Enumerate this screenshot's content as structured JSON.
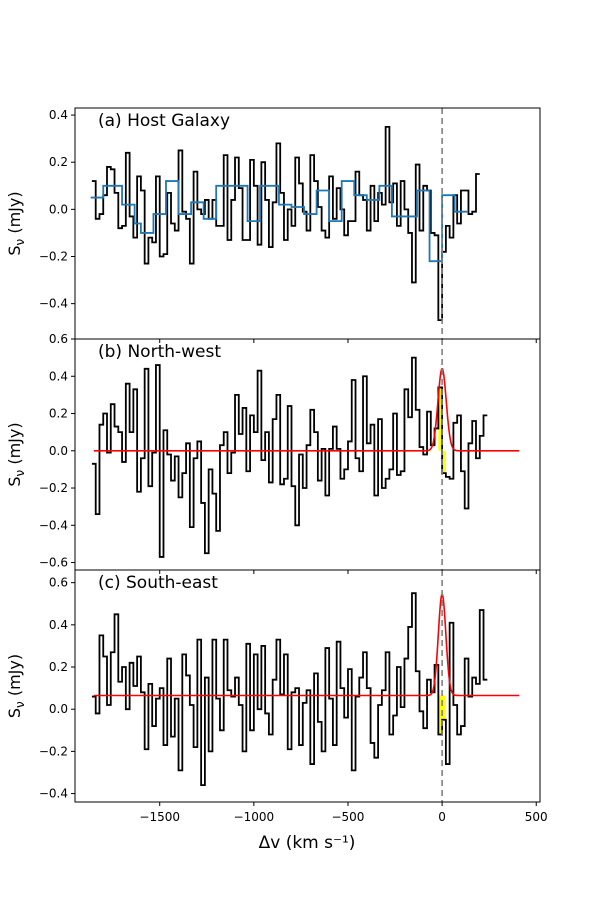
{
  "chart_data": [
    {
      "type": "line",
      "title": "(a) Host Galaxy",
      "ylabel": "Sν (mJy)",
      "ylabel_sub": "ν",
      "xlim": [
        -1950,
        520
      ],
      "ylim": [
        -0.55,
        0.43
      ],
      "yticks": [
        -0.4,
        -0.2,
        0.0,
        0.2,
        0.4
      ],
      "ytick_labels": [
        "−0.4",
        "−0.2",
        "0.0",
        "0.2",
        "0.4"
      ],
      "step_x0": -1850,
      "step_dx": 20,
      "series": [
        {
          "color": "#000000",
          "values": [
            0.12,
            -0.04,
            -0.02,
            0.06,
            0.18,
            0.17,
            0.07,
            -0.08,
            -0.07,
            0.24,
            -0.03,
            -0.12,
            0.14,
            0.08,
            -0.23,
            -0.12,
            -0.14,
            0.14,
            -0.2,
            -0.19,
            0.07,
            -0.06,
            -0.09,
            0.25,
            -0.01,
            -0.04,
            -0.23,
            0.16,
            0.0,
            -0.02,
            0.04,
            -0.04,
            0.04,
            -0.07,
            -0.07,
            0.23,
            -0.13,
            0.04,
            0.22,
            0.09,
            -0.13,
            -0.13,
            0.21,
            0.1,
            -0.15,
            0.2,
            0.04,
            -0.16,
            0.03,
            0.28,
            0.07,
            -0.13,
            0.0,
            -0.07,
            0.22,
            0.11,
            -0.01,
            -0.09,
            0.23,
            0.12,
            0.01,
            -0.09,
            -0.12,
            0.14,
            -0.04,
            0.09,
            0.0,
            -0.11,
            -0.05,
            -0.05,
            0.16,
            0.06,
            0.04,
            -0.09,
            0.1,
            -0.05,
            0.07,
            0.02,
            0.35,
            0.03,
            0.11,
            -0.07,
            0.12,
            0.0,
            -0.1,
            -0.31,
            0.19,
            -0.09,
            0.1,
            0.08,
            -0.1,
            -0.11,
            -0.47,
            -0.18,
            -0.07,
            -0.12,
            0.06,
            -0.06,
            0.08,
            0.08,
            -0.02,
            -0.01,
            0.15
          ]
        },
        {
          "color": "#1f77b4",
          "values": [
            0.05,
            0.05,
            0.1,
            0.1,
            0.1,
            0.02,
            0.02,
            -0.06,
            -0.1,
            -0.1,
            -0.02,
            -0.02,
            0.12,
            0.12,
            -0.02,
            -0.02,
            0.03,
            0.03,
            -0.04,
            -0.04,
            0.1,
            0.1,
            0.1,
            0.1,
            0.1,
            -0.05,
            -0.05,
            0.1,
            0.1,
            0.1,
            0.02,
            0.02,
            0.01,
            0.01,
            -0.02,
            -0.02,
            0.08,
            0.08,
            -0.05,
            -0.05,
            0.12,
            0.12,
            0.06,
            0.06,
            0.04,
            0.04,
            0.1,
            0.1,
            -0.03,
            -0.03,
            -0.03,
            -0.03,
            0.08,
            0.08,
            -0.22,
            -0.22,
            0.06,
            0.06,
            -0.01,
            -0.01
          ]
        }
      ]
    },
    {
      "type": "line",
      "title": "(b) North-west",
      "ylabel": "Sν (mJy)",
      "ylabel_sub": "ν",
      "xlim": [
        -1950,
        520
      ],
      "ylim": [
        -0.64,
        0.6
      ],
      "yticks": [
        -0.6,
        -0.4,
        -0.2,
        0.0,
        0.2,
        0.4,
        0.6
      ],
      "ytick_labels": [
        "−0.6",
        "−0.4",
        "−0.2",
        "0.0",
        "0.2",
        "0.4",
        "0.6"
      ],
      "step_x0": -1850,
      "step_dx": 20,
      "series": [
        {
          "color": "#000000",
          "values": [
            -0.07,
            -0.34,
            0.14,
            0.2,
            -0.01,
            0.25,
            0.13,
            0.1,
            -0.06,
            0.36,
            0.1,
            0.33,
            -0.22,
            -0.04,
            0.44,
            -0.19,
            -0.01,
            0.46,
            -0.57,
            0.11,
            -0.02,
            -0.16,
            -0.03,
            -0.25,
            -0.12,
            0.04,
            -0.41,
            -0.04,
            0.05,
            -0.28,
            -0.55,
            -0.1,
            -0.23,
            -0.43,
            0.03,
            0.1,
            -0.12,
            -0.01,
            0.3,
            0.09,
            0.23,
            -0.11,
            0.19,
            0.1,
            0.43,
            -0.05,
            0.1,
            -0.17,
            0.17,
            0.3,
            -0.18,
            -0.15,
            0.24,
            -0.19,
            -0.4,
            -0.02,
            -0.2,
            0.03,
            0.22,
            0.1,
            -0.16,
            0.01,
            -0.24,
            0.01,
            0.13,
            0.01,
            -0.15,
            -0.1,
            0.05,
            0.38,
            -0.04,
            -0.11,
            0.4,
            0.04,
            0.14,
            -0.24,
            0.17,
            -0.2,
            -0.15,
            -0.1,
            0.2,
            -0.13,
            -0.11,
            0.33,
            0.18,
            0.5,
            0.22,
            0.02,
            -0.02,
            0.21,
            0.03,
            0.12,
            0.34,
            -0.12,
            -0.14,
            -0.15,
            0.15,
            0.19,
            -0.11,
            -0.31,
            0.04,
            0.16,
            -0.04,
            0.08,
            0.19
          ]
        },
        {
          "color": "#ff0000",
          "values": []
        }
      ],
      "fit": {
        "baseline": 0.0,
        "amplitude": 0.44,
        "center": 0,
        "sigma": 22
      },
      "highlight": {
        "color": "#ffff00",
        "x_range": [
          -20,
          20
        ]
      }
    },
    {
      "type": "line",
      "title": "(c) South-east",
      "ylabel": "Sν (mJy)",
      "ylabel_sub": "ν",
      "xlim": [
        -1950,
        520
      ],
      "ylim": [
        -0.44,
        0.66
      ],
      "yticks": [
        -0.4,
        -0.2,
        0.0,
        0.2,
        0.4,
        0.6
      ],
      "ytick_labels": [
        "−0.4",
        "−0.2",
        "0.0",
        "0.2",
        "0.4",
        "0.6"
      ],
      "xticks": [
        -1500,
        -1000,
        -500,
        0,
        500
      ],
      "xtick_labels": [
        "−1500",
        "−1000",
        "−500",
        "0",
        "500"
      ],
      "xlabel": "Δv (km s⁻¹)",
      "step_x0": -1850,
      "step_dx": 20,
      "series": [
        {
          "color": "#000000",
          "values": [
            0.06,
            -0.02,
            0.35,
            0.25,
            0.02,
            0.27,
            0.45,
            0.13,
            0.2,
            0.0,
            0.22,
            0.11,
            0.25,
            0.08,
            -0.19,
            0.12,
            -0.08,
            0.05,
            0.1,
            -0.17,
            0.24,
            -0.13,
            0.05,
            -0.29,
            0.26,
            0.16,
            0.02,
            -0.18,
            0.33,
            -0.36,
            0.15,
            -0.2,
            0.33,
            0.05,
            -0.1,
            0.33,
            0.09,
            0.06,
            0.15,
            0.02,
            -0.2,
            0.31,
            -0.1,
            0.26,
            0.0,
            0.3,
            -0.02,
            -0.12,
            0.14,
            0.33,
            0.07,
            0.26,
            -0.19,
            0.08,
            0.1,
            -0.17,
            0.03,
            0.09,
            -0.26,
            0.17,
            -0.06,
            -0.2,
            0.29,
            0.05,
            -0.17,
            0.32,
            0.1,
            -0.04,
            0.19,
            -0.29,
            0.06,
            0.15,
            0.27,
            0.1,
            -0.16,
            -0.23,
            0.02,
            0.09,
            0.27,
            -0.12,
            -0.03,
            0.2,
            0.01,
            0.24,
            0.39,
            0.55,
            0.18,
            -0.01,
            -0.09,
            0.14,
            0.08,
            0.21,
            -0.12,
            -0.05,
            -0.26,
            0.41,
            0.02,
            -0.12,
            -0.08,
            0.24,
            0.06,
            0.15,
            0.12,
            0.47,
            0.14
          ]
        },
        {
          "color": "#ff0000",
          "values": []
        }
      ],
      "fit": {
        "baseline": 0.065,
        "amplitude": 0.48,
        "center": 0,
        "sigma": 20
      },
      "highlight": {
        "color": "#ffff00",
        "x_range": [
          -20,
          20
        ]
      }
    }
  ],
  "reference_line": {
    "x": 0,
    "color": "#808080"
  }
}
